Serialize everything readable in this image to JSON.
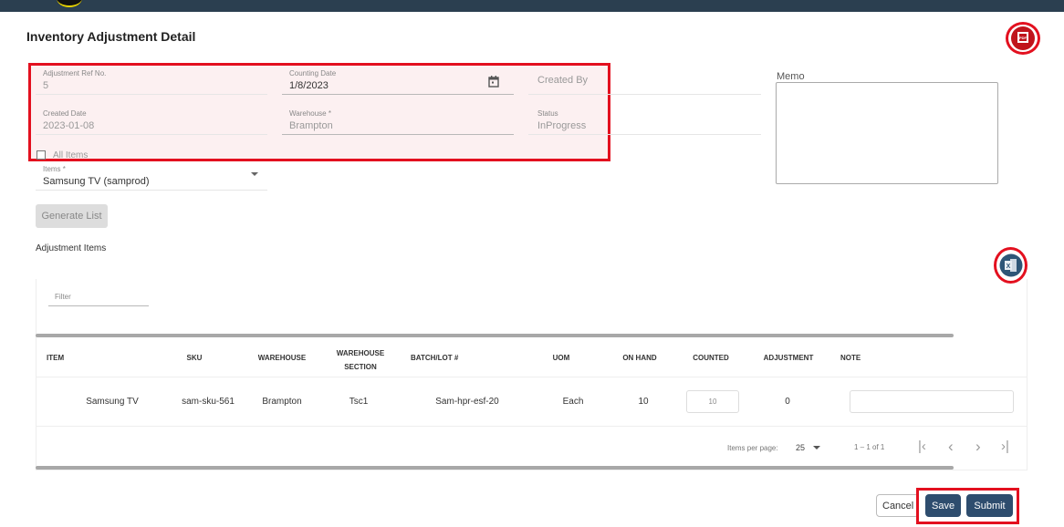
{
  "page_title": "Inventory Adjustment Detail",
  "form": {
    "adjustment_ref": {
      "label": "Adjustment Ref No.",
      "value": "5"
    },
    "counting_date": {
      "label": "Counting Date",
      "value": "1/8/2023"
    },
    "created_by": {
      "label": "Created By",
      "value": ""
    },
    "created_date": {
      "label": "Created Date",
      "value": "2023-01-08"
    },
    "warehouse": {
      "label": "Warehouse *",
      "value": "Brampton"
    },
    "status": {
      "label": "Status",
      "value": "InProgress"
    },
    "all_items": {
      "label": "All Items",
      "checked": false
    },
    "items": {
      "label": "Items *",
      "value": "Samsung TV (samprod)"
    },
    "memo": {
      "label": "Memo",
      "value": ""
    }
  },
  "generate_list_label": "Generate List",
  "adjustment_items_label": "Adjustment Items",
  "filter_placeholder": "Filter",
  "table": {
    "columns": [
      "ITEM",
      "SKU",
      "WAREHOUSE",
      "WAREHOUSE SECTION",
      "BATCH/LOT #",
      "UOM",
      "ON HAND",
      "COUNTED",
      "ADJUSTMENT",
      "NOTE"
    ],
    "rows": [
      {
        "item": "Samsung TV",
        "sku": "sam-sku-561",
        "warehouse": "Brampton",
        "section": "Tsc1",
        "batch": "Sam-hpr-esf-20",
        "uom": "Each",
        "on_hand": "10",
        "counted": "10",
        "adjustment": "0",
        "note": ""
      }
    ]
  },
  "paginator": {
    "items_per_page_label": "Items per page:",
    "page_size": "25",
    "range": "1 – 1 of 1"
  },
  "buttons": {
    "cancel": "Cancel",
    "save": "Save",
    "submit": "Submit"
  },
  "colors": {
    "header": "#2b3f50",
    "primary": "#2e4d6e",
    "highlight": "#e3101f",
    "pdf": "#c0141c",
    "excel": "#2e5677"
  },
  "icons": {
    "pdf": "pdf-icon",
    "excel": "excel-icon",
    "calendar": "calendar-icon"
  }
}
